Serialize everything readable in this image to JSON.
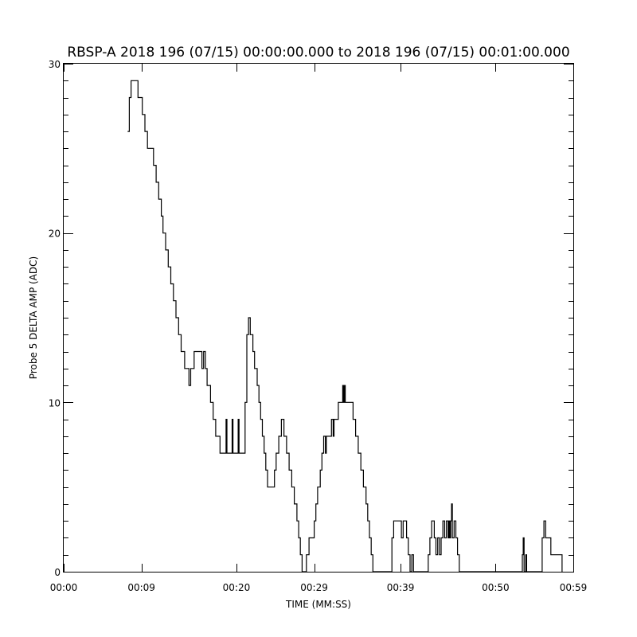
{
  "chart_data": {
    "type": "line",
    "title": "RBSP-A 2018 196 (07/15) 00:00:00.000 to 2018 196 (07/15) 00:01:00.000",
    "xlabel": "TIME (MM:SS)",
    "ylabel": "Probe 5 DELTA AMP (ADC)",
    "xlim": [
      0,
      59
    ],
    "ylim": [
      0,
      30
    ],
    "grid": false,
    "x_ticks": [
      {
        "value": 0,
        "label": "00:00"
      },
      {
        "value": 9,
        "label": "00:09"
      },
      {
        "value": 20,
        "label": "00:20"
      },
      {
        "value": 29,
        "label": "00:29"
      },
      {
        "value": 39,
        "label": "00:39"
      },
      {
        "value": 50,
        "label": "00:50"
      },
      {
        "value": 59,
        "label": "00:59"
      }
    ],
    "y_ticks": [
      {
        "value": 0,
        "label": "0"
      },
      {
        "value": 10,
        "label": "10"
      },
      {
        "value": 20,
        "label": "20"
      },
      {
        "value": 30,
        "label": "30"
      }
    ],
    "series": [
      {
        "color": "#000000",
        "step": true,
        "points": [
          [
            7.4,
            26
          ],
          [
            7.6,
            28
          ],
          [
            7.8,
            29
          ],
          [
            8.4,
            29
          ],
          [
            8.6,
            28
          ],
          [
            8.9,
            28
          ],
          [
            9.1,
            27
          ],
          [
            9.4,
            26
          ],
          [
            9.7,
            25
          ],
          [
            10.2,
            25
          ],
          [
            10.4,
            24
          ],
          [
            10.7,
            23
          ],
          [
            11.0,
            22
          ],
          [
            11.3,
            21
          ],
          [
            11.5,
            20
          ],
          [
            11.8,
            19
          ],
          [
            12.1,
            18
          ],
          [
            12.4,
            17
          ],
          [
            12.7,
            16
          ],
          [
            13.0,
            15
          ],
          [
            13.3,
            14
          ],
          [
            13.6,
            13
          ],
          [
            14.0,
            12
          ],
          [
            14.4,
            12
          ],
          [
            14.5,
            11
          ],
          [
            14.7,
            12
          ],
          [
            14.9,
            12
          ],
          [
            15.1,
            13
          ],
          [
            15.9,
            13
          ],
          [
            16.0,
            12
          ],
          [
            16.2,
            13
          ],
          [
            16.4,
            12
          ],
          [
            16.6,
            11
          ],
          [
            16.8,
            11
          ],
          [
            17.0,
            10
          ],
          [
            17.3,
            9
          ],
          [
            17.6,
            8
          ],
          [
            17.9,
            8
          ],
          [
            18.1,
            7
          ],
          [
            18.6,
            7
          ],
          [
            18.8,
            9
          ],
          [
            18.9,
            7
          ],
          [
            19.4,
            7
          ],
          [
            19.5,
            9
          ],
          [
            19.6,
            7
          ],
          [
            20.1,
            7
          ],
          [
            20.2,
            9
          ],
          [
            20.3,
            7
          ],
          [
            20.9,
            7
          ],
          [
            21.0,
            10
          ],
          [
            21.2,
            14
          ],
          [
            21.4,
            15
          ],
          [
            21.6,
            14
          ],
          [
            21.9,
            13
          ],
          [
            22.1,
            12
          ],
          [
            22.4,
            11
          ],
          [
            22.6,
            10
          ],
          [
            22.8,
            9
          ],
          [
            23.0,
            8
          ],
          [
            23.2,
            7
          ],
          [
            23.4,
            6
          ],
          [
            23.6,
            5
          ],
          [
            24.2,
            5
          ],
          [
            24.4,
            6
          ],
          [
            24.6,
            7
          ],
          [
            24.9,
            8
          ],
          [
            25.2,
            9
          ],
          [
            25.5,
            8
          ],
          [
            25.8,
            7
          ],
          [
            26.1,
            6
          ],
          [
            26.4,
            5
          ],
          [
            26.7,
            4
          ],
          [
            27.0,
            3
          ],
          [
            27.2,
            2
          ],
          [
            27.4,
            1
          ],
          [
            27.6,
            0
          ],
          [
            27.9,
            0
          ],
          [
            28.1,
            1
          ],
          [
            28.4,
            2
          ],
          [
            28.8,
            2
          ],
          [
            29.0,
            3
          ],
          [
            29.2,
            4
          ],
          [
            29.4,
            5
          ],
          [
            29.7,
            6
          ],
          [
            29.9,
            7
          ],
          [
            30.1,
            8
          ],
          [
            30.3,
            7
          ],
          [
            30.4,
            8
          ],
          [
            30.8,
            8
          ],
          [
            31.0,
            9
          ],
          [
            31.2,
            8
          ],
          [
            31.3,
            9
          ],
          [
            31.6,
            9
          ],
          [
            31.8,
            10
          ],
          [
            32.1,
            10
          ],
          [
            32.3,
            11
          ],
          [
            32.4,
            10
          ],
          [
            32.5,
            11
          ],
          [
            32.6,
            10
          ],
          [
            33.3,
            10
          ],
          [
            33.5,
            9
          ],
          [
            33.8,
            8
          ],
          [
            34.1,
            7
          ],
          [
            34.4,
            6
          ],
          [
            34.7,
            5
          ],
          [
            35.0,
            4
          ],
          [
            35.2,
            3
          ],
          [
            35.4,
            2
          ],
          [
            35.6,
            1
          ],
          [
            35.8,
            0
          ],
          [
            37.8,
            0
          ],
          [
            38.0,
            2
          ],
          [
            38.2,
            3
          ],
          [
            38.9,
            3
          ],
          [
            39.1,
            2
          ],
          [
            39.3,
            3
          ],
          [
            39.5,
            3
          ],
          [
            39.7,
            2
          ],
          [
            39.9,
            1
          ],
          [
            40.1,
            0
          ],
          [
            40.3,
            1
          ],
          [
            40.5,
            0
          ],
          [
            42.0,
            0
          ],
          [
            42.2,
            1
          ],
          [
            42.4,
            2
          ],
          [
            42.6,
            3
          ],
          [
            42.9,
            2
          ],
          [
            43.1,
            1
          ],
          [
            43.3,
            2
          ],
          [
            43.5,
            1
          ],
          [
            43.7,
            2
          ],
          [
            43.9,
            3
          ],
          [
            44.1,
            2
          ],
          [
            44.3,
            3
          ],
          [
            44.5,
            2
          ],
          [
            44.6,
            3
          ],
          [
            44.7,
            2
          ],
          [
            44.8,
            3
          ],
          [
            44.9,
            4
          ],
          [
            45.0,
            2
          ],
          [
            45.2,
            3
          ],
          [
            45.4,
            2
          ],
          [
            45.6,
            1
          ],
          [
            45.8,
            0
          ],
          [
            53.0,
            0
          ],
          [
            53.1,
            1
          ],
          [
            53.2,
            2
          ],
          [
            53.3,
            0
          ],
          [
            53.5,
            1
          ],
          [
            53.6,
            0
          ],
          [
            55.2,
            0
          ],
          [
            55.4,
            2
          ],
          [
            55.6,
            3
          ],
          [
            55.8,
            2
          ],
          [
            56.2,
            2
          ],
          [
            56.4,
            1
          ],
          [
            57.5,
            1
          ],
          [
            57.7,
            0
          ]
        ]
      }
    ]
  }
}
